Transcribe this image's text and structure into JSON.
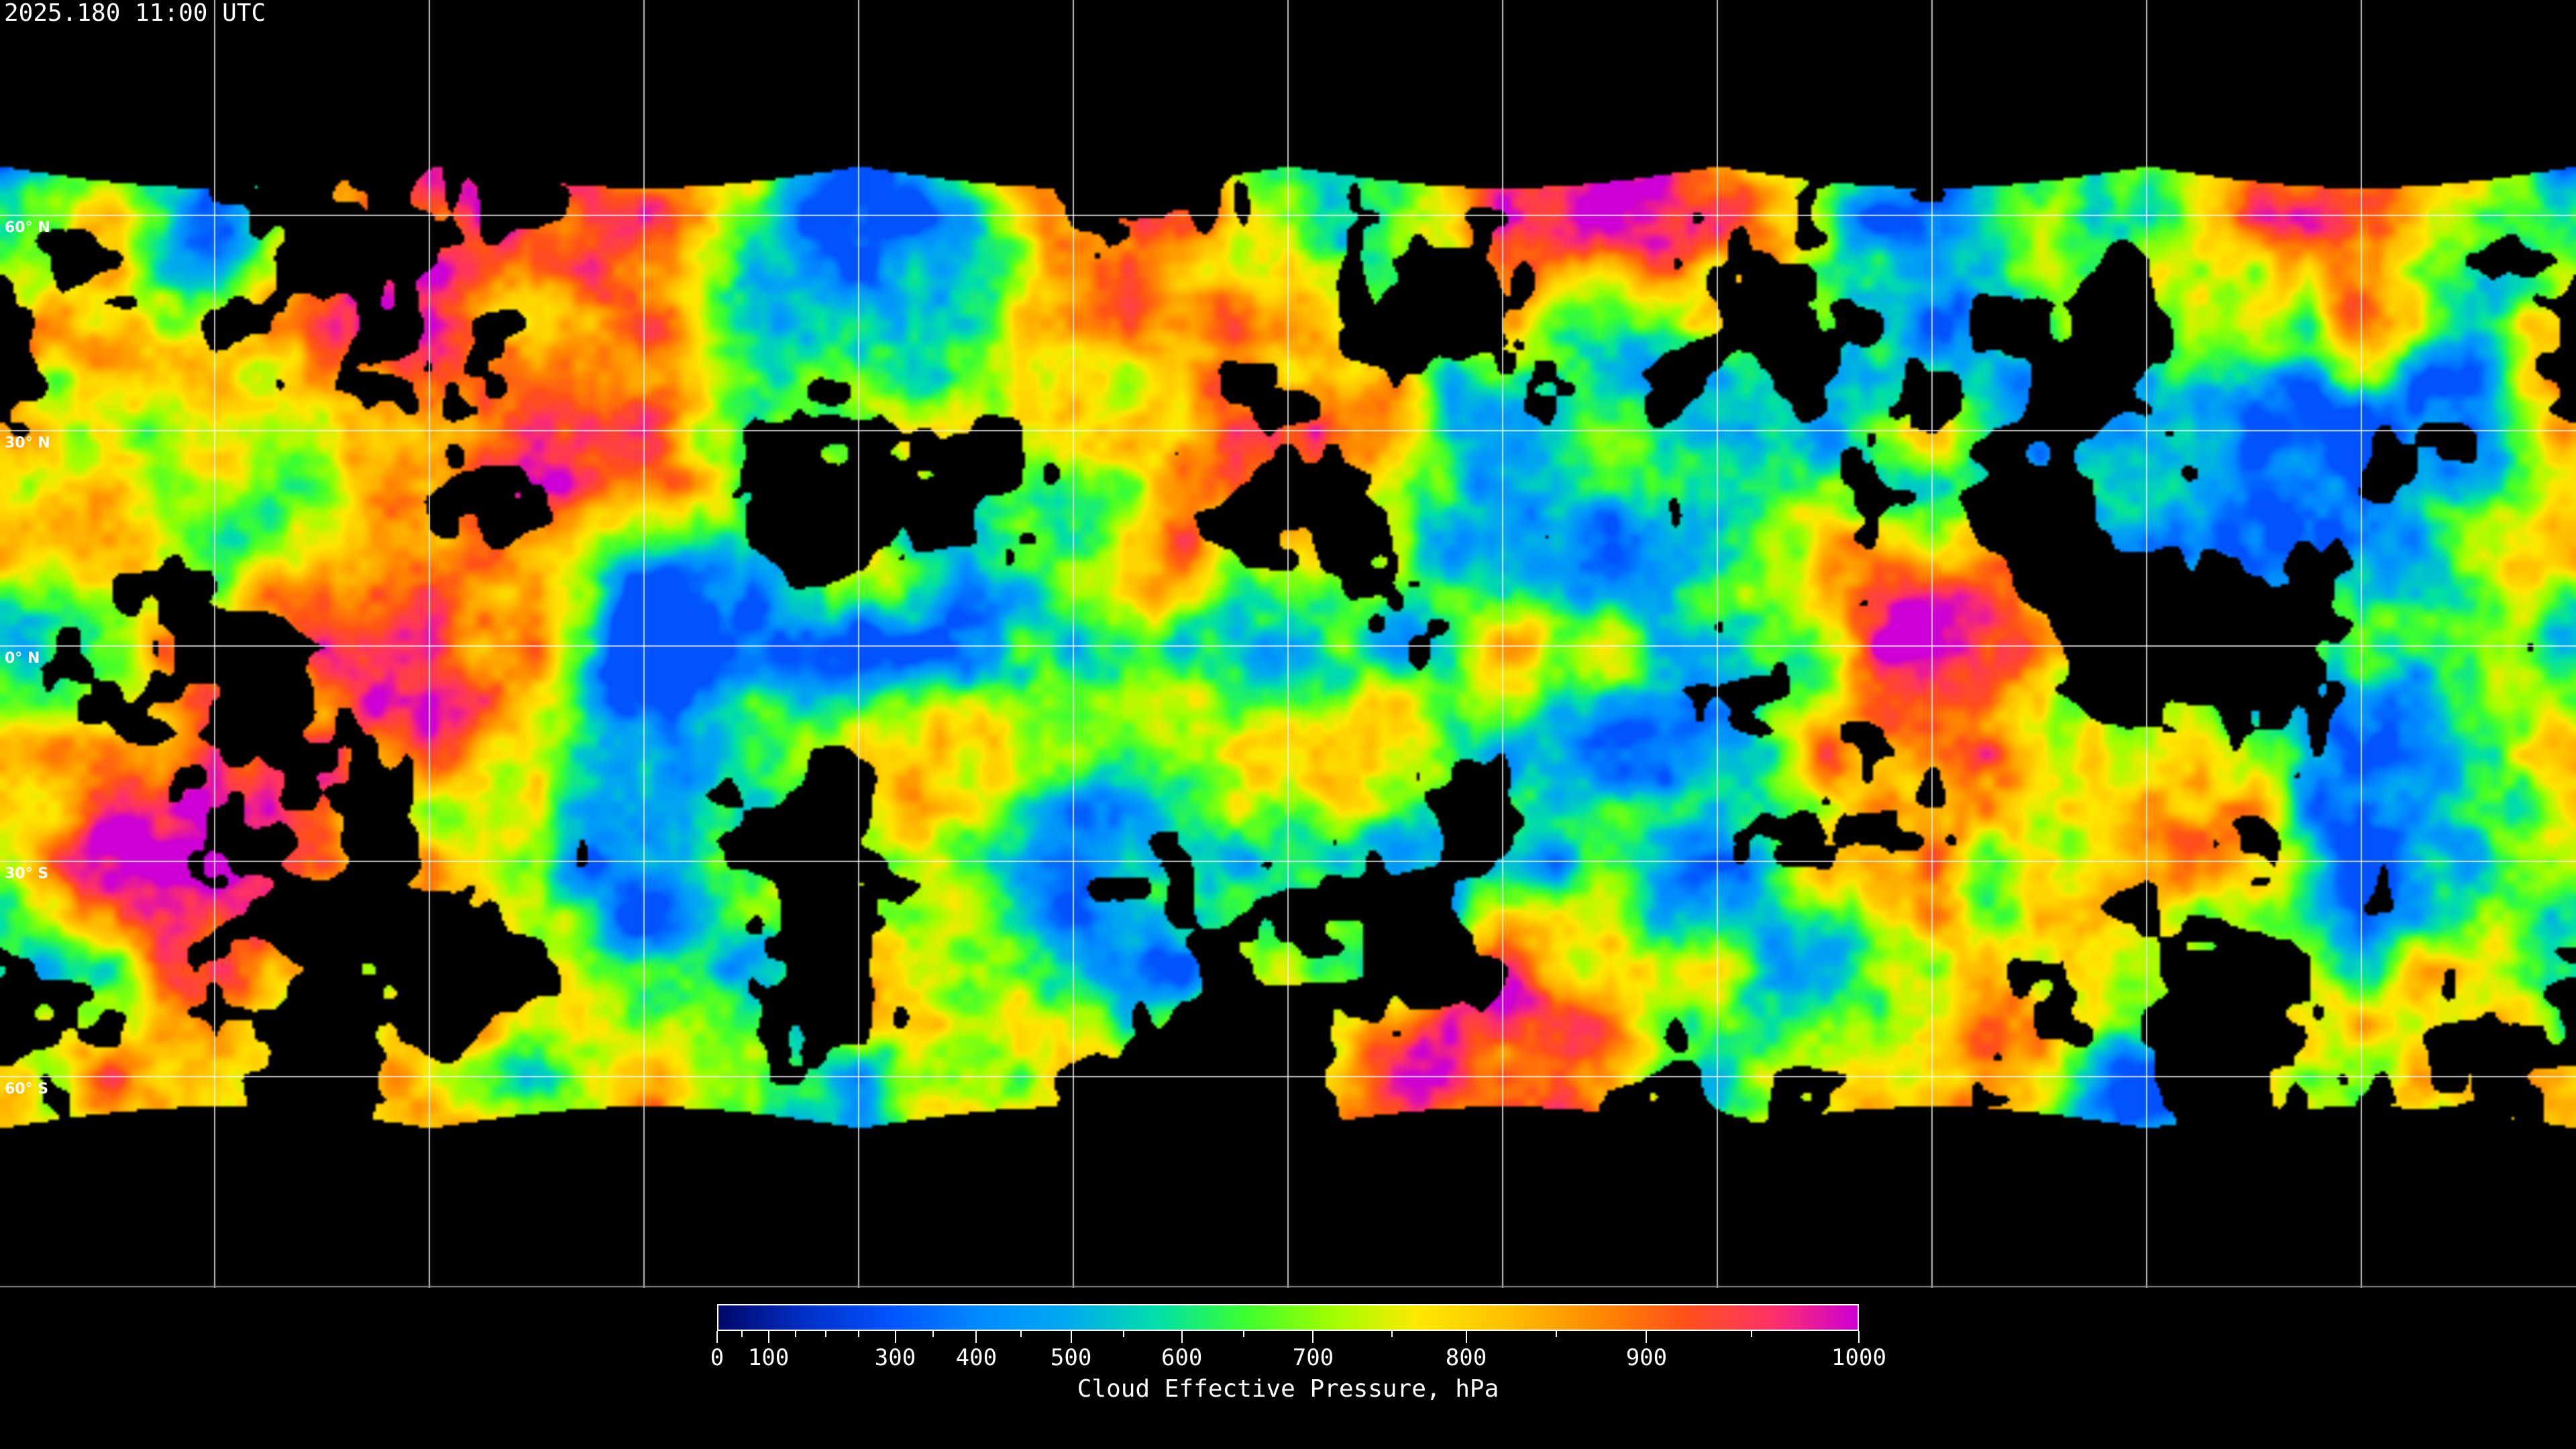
{
  "title": "2025.180 11:00 UTC",
  "map": {
    "projection": "equirectangular",
    "gridlines": true,
    "lat_labels": [
      "60° N",
      "30° N",
      "0° N",
      "30° S",
      "60° S"
    ],
    "lat_values": [
      60,
      30,
      0,
      -30,
      -60
    ],
    "lon_grid_step_deg": 30,
    "clear_sky_color": "#000000",
    "coastline_color": "#ffffff"
  },
  "colorbar": {
    "label": "Cloud Effective Pressure, hPa",
    "min": 0,
    "max": 1000,
    "ticks": [
      "0",
      "100",
      "300",
      "400",
      "500",
      "600",
      "700",
      "800",
      "900",
      "1000"
    ],
    "colors": [
      "#00076a",
      "#0030c8",
      "#0055ff",
      "#008cff",
      "#00aaee",
      "#00dfa8",
      "#3cff30",
      "#a0ff00",
      "#ffe800",
      "#ffc000",
      "#ff8c00",
      "#ff5218",
      "#ff3364",
      "#cc00d4"
    ]
  }
}
